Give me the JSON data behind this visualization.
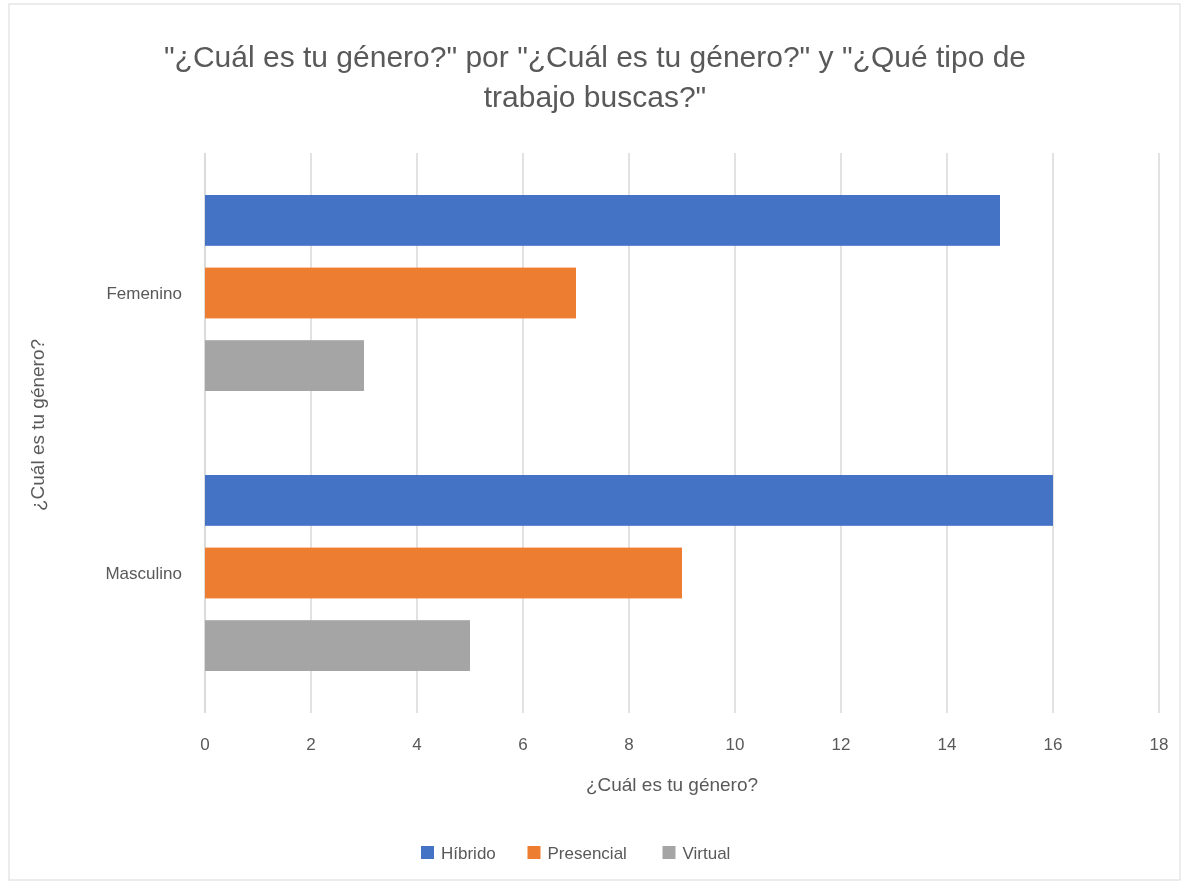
{
  "chart_data": {
    "type": "bar",
    "orientation": "horizontal",
    "title": "\"¿Cuál es tu género?\" por \"¿Cuál es tu género?\" y \"¿Qué tipo de trabajo buscas?\"",
    "xlabel": "¿Cuál es tu género?",
    "ylabel": "¿Cuál es tu género?",
    "categories": [
      "Femenino",
      "Masculino"
    ],
    "series": [
      {
        "name": "Híbrido",
        "color": "#4472c4",
        "values": [
          15,
          16
        ]
      },
      {
        "name": "Presencial",
        "color": "#ed7d31",
        "values": [
          7,
          9
        ]
      },
      {
        "name": "Virtual",
        "color": "#a5a5a5",
        "values": [
          3,
          5
        ]
      }
    ],
    "xlim": [
      0,
      18
    ],
    "xticks": [
      0,
      2,
      4,
      6,
      8,
      10,
      12,
      14,
      16,
      18
    ],
    "grid": "x",
    "legend": "bottom"
  }
}
